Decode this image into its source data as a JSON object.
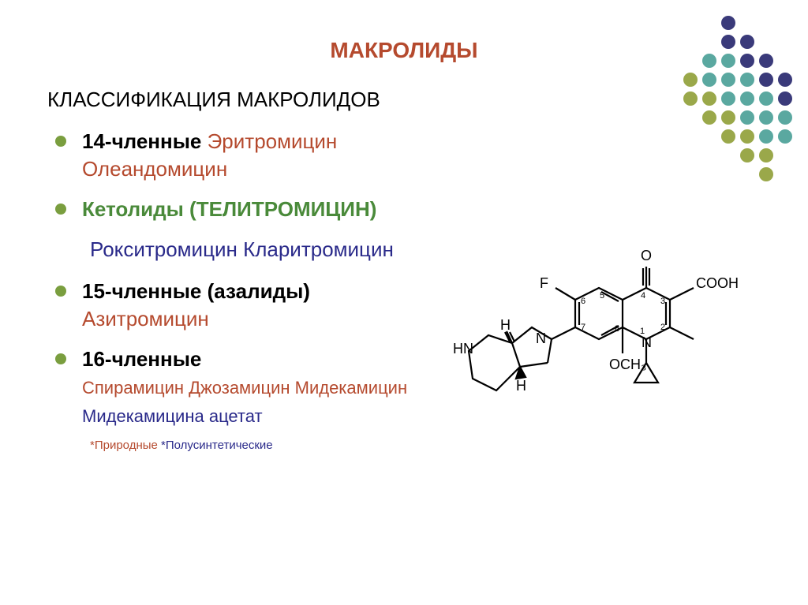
{
  "title": {
    "text": "МАКРОЛИДЫ",
    "color": "#b54a2e"
  },
  "heading": {
    "text": "КЛАССИФИКАЦИЯ МАКРОЛИДОВ",
    "color": "#000000"
  },
  "bullet_color": "#7a9e3f",
  "items": {
    "item1": {
      "bold": "14-членные",
      "rest1": " Эритромицин",
      "rest2": "Олеандомицин",
      "bold_color": "#000000",
      "rest_color": "#b54a2e"
    },
    "item2": {
      "text": "Кетолиды (ТЕЛИТРОМИЦИН)",
      "color": "#4a8a3a"
    },
    "item2b": {
      "text": "Рокситромицин Кларитромицин",
      "color": "#2a2a8a"
    },
    "item3": {
      "bold": "15-членные (азалиды)",
      "rest": " Азитромицин",
      "bold_color": "#000000",
      "rest_color": "#b54a2e"
    },
    "item4": {
      "bold": "16-членные",
      "rest1": "Спирамицин Джозамицин Мидекамицин",
      "rest2": "Мидекамицина ацетат",
      "bold_color": "#000000",
      "rest1_color": "#b54a2e",
      "rest2_color": "#2a2a8a"
    }
  },
  "footnote": {
    "part1": "*Природные",
    "part2": " *Полусинтетические",
    "color1": "#b54a2e",
    "color2": "#2a2a8a"
  },
  "decoration": {
    "colors": {
      "purple": "#3a3a7a",
      "teal": "#5aa8a0",
      "olive": "#9aa84a"
    },
    "grid": [
      [
        "",
        "",
        "purple",
        "",
        "",
        ""
      ],
      [
        "",
        "",
        "purple",
        "purple",
        "",
        ""
      ],
      [
        "",
        "teal",
        "teal",
        "purple",
        "purple",
        ""
      ],
      [
        "olive",
        "teal",
        "teal",
        "teal",
        "purple",
        "purple"
      ],
      [
        "olive",
        "olive",
        "teal",
        "teal",
        "teal",
        "purple"
      ],
      [
        "",
        "olive",
        "olive",
        "teal",
        "teal",
        "teal"
      ],
      [
        "",
        "",
        "olive",
        "olive",
        "teal",
        "teal"
      ],
      [
        "",
        "",
        "",
        "olive",
        "olive",
        ""
      ],
      [
        "",
        "",
        "",
        "",
        "olive",
        ""
      ]
    ]
  },
  "chem": {
    "labels": {
      "F": "F",
      "O": "O",
      "COOH": "COOH",
      "N_top": "N",
      "N_ring": "N",
      "HN": "HN",
      "H1": "H",
      "H2": "H",
      "OCH3": "OCH₃",
      "n1": "1",
      "n2": "2",
      "n3": "3",
      "n4": "4",
      "n5": "5",
      "n6": "6",
      "n7": "7",
      "n8": "8"
    }
  }
}
